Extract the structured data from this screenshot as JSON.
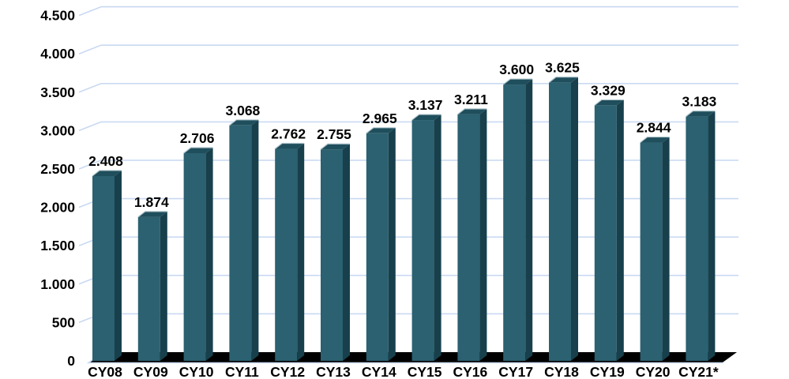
{
  "chart_data": {
    "type": "bar",
    "style": "3d-column",
    "title": "",
    "xlabel": "",
    "ylabel": "",
    "categories": [
      "CY08",
      "CY09",
      "CY10",
      "CY11",
      "CY12",
      "CY13",
      "CY14",
      "CY15",
      "CY16",
      "CY17",
      "CY18",
      "CY19",
      "CY20",
      "CY21*"
    ],
    "values": [
      2408,
      1874,
      2706,
      3068,
      2762,
      2755,
      2965,
      3137,
      3211,
      3600,
      3625,
      3329,
      2844,
      3183
    ],
    "data_labels": [
      "2.408",
      "1.874",
      "2.706",
      "3.068",
      "2.762",
      "2.755",
      "2.965",
      "3.137",
      "3.211",
      "3.600",
      "3.625",
      "3.329",
      "2.844",
      "3.183"
    ],
    "ylim": [
      0,
      4500
    ],
    "y_tick_step": 500,
    "y_tick_labels": [
      "0",
      "500",
      "1.000",
      "1.500",
      "2.000",
      "2.500",
      "3.000",
      "3.500",
      "4.000",
      "4.500"
    ],
    "grid": true,
    "legend": "none",
    "colors": {
      "bar_front": "#2B6170",
      "bar_top": "#1F4E5C",
      "bar_side": "#17404C",
      "bar_highlight": "#AFC4CA",
      "gridline": "#C9D9F2",
      "floor": "#000000",
      "text": "#000000",
      "background": "#FFFFFF"
    }
  }
}
